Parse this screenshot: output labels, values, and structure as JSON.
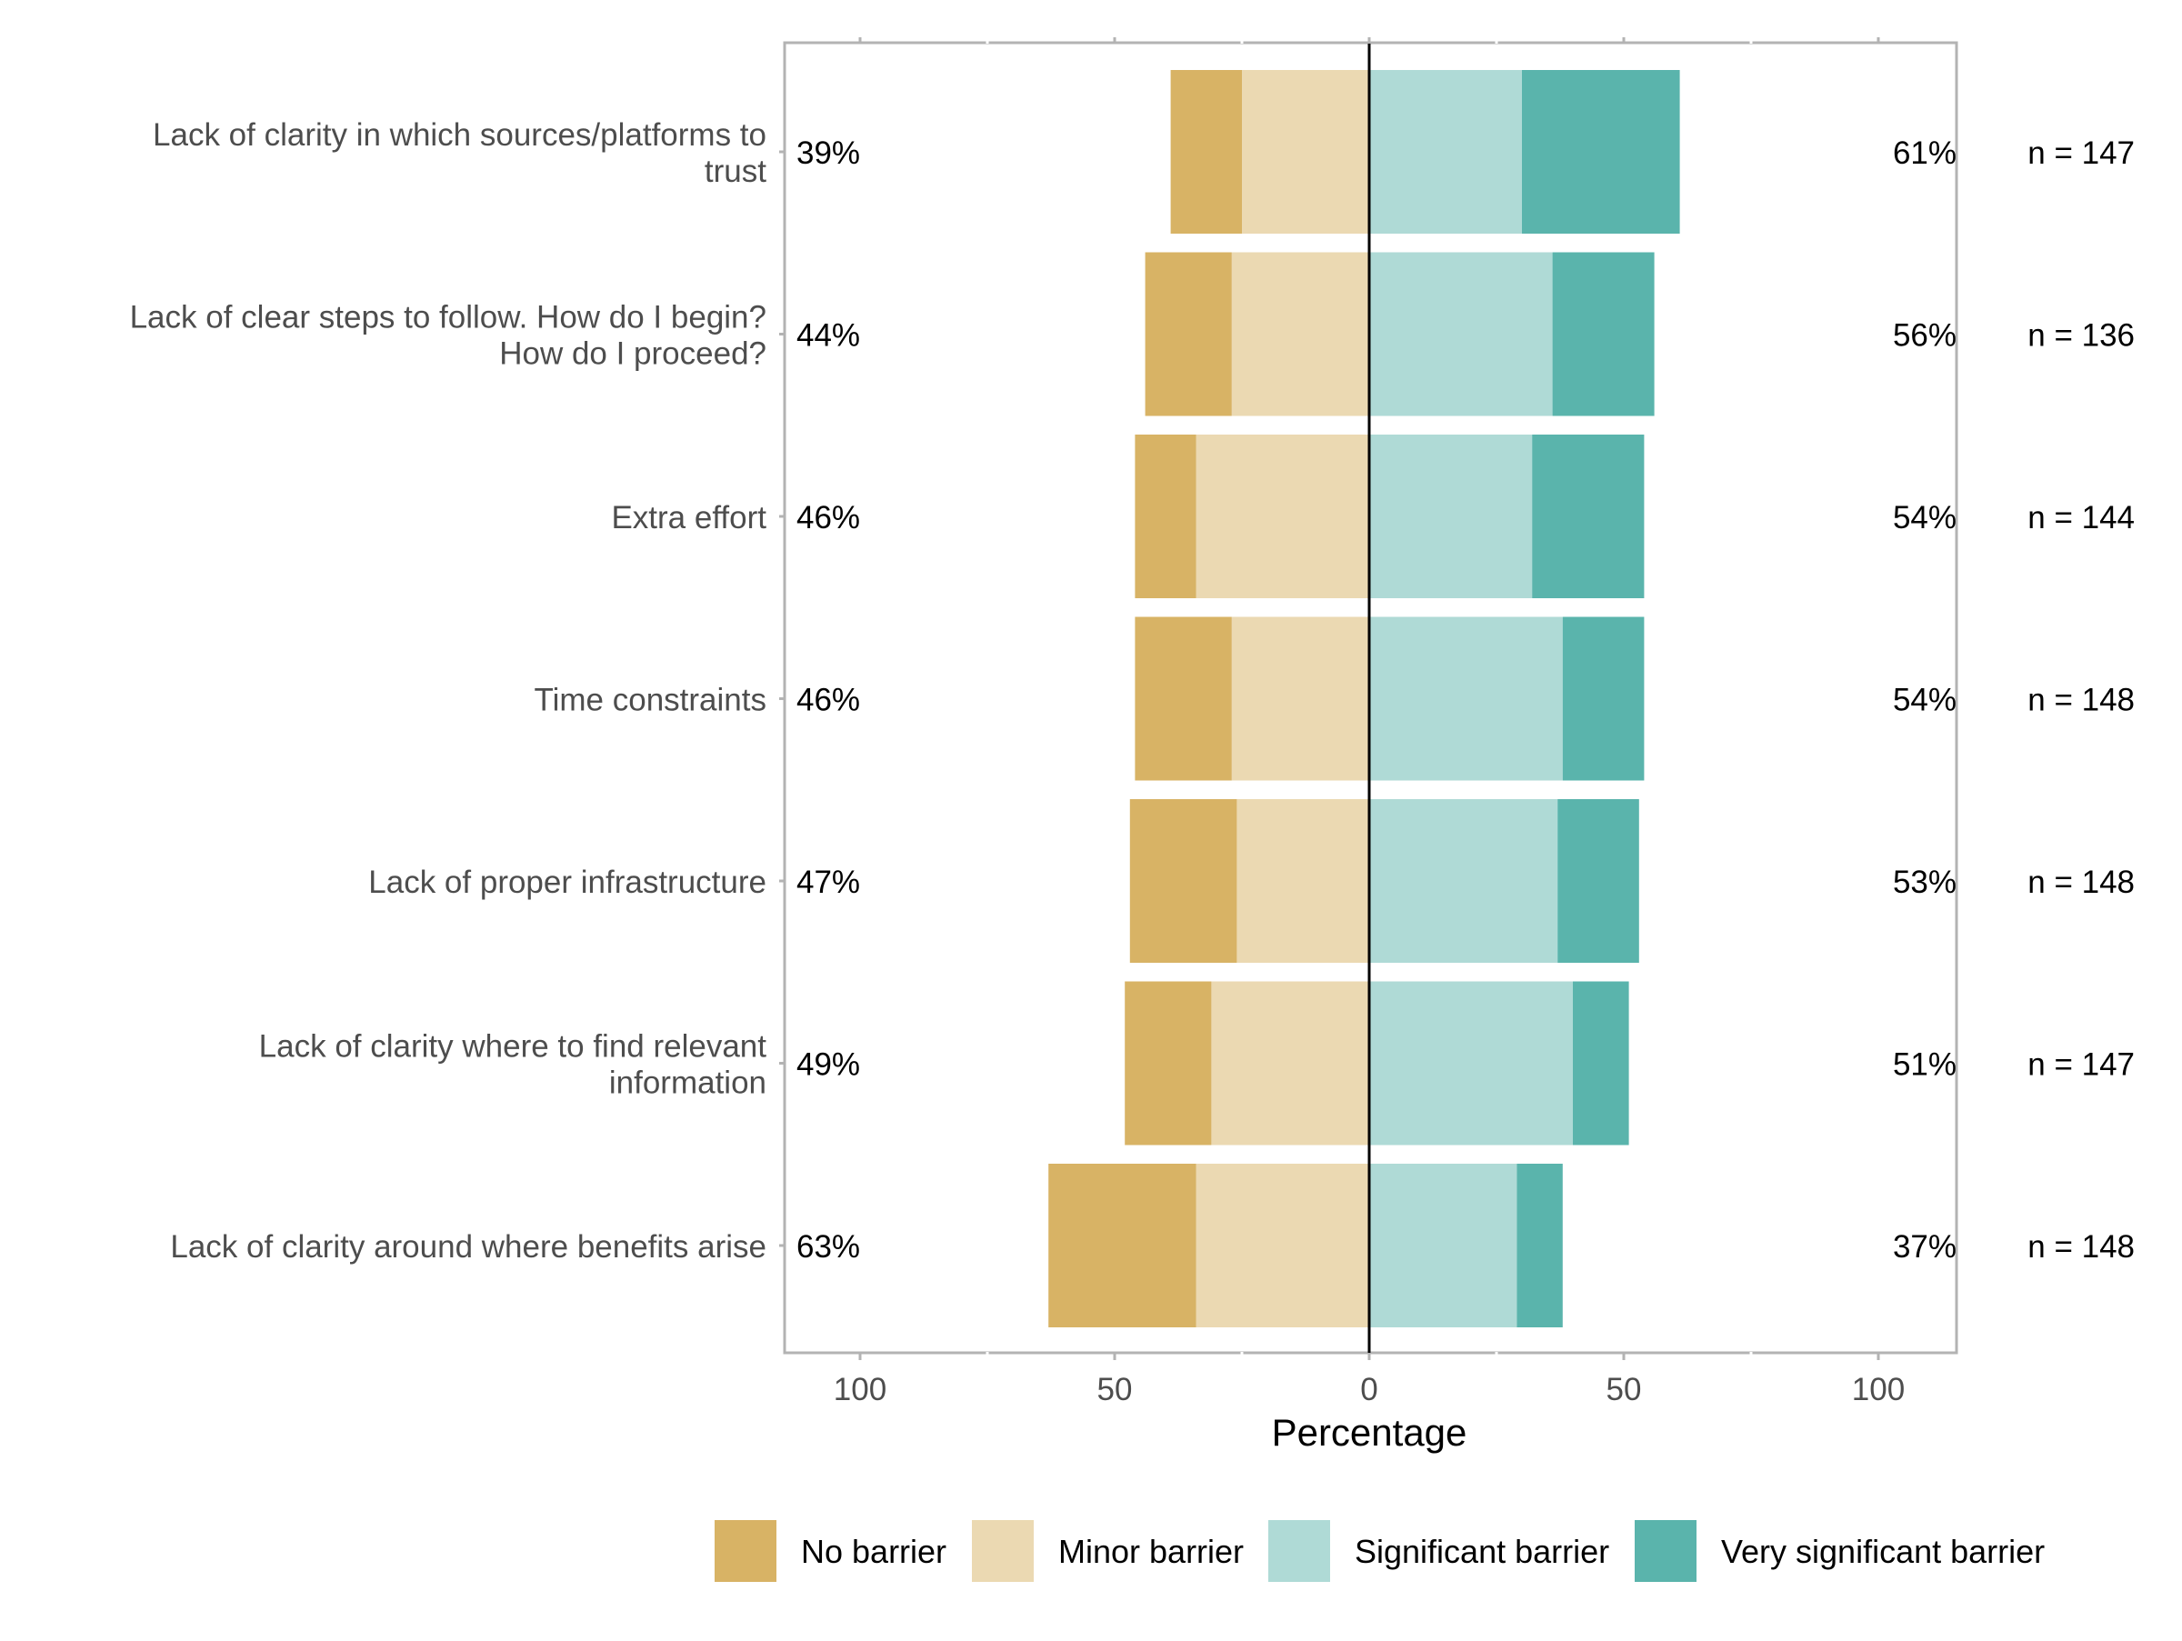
{
  "chart_data": {
    "type": "bar",
    "subtype": "diverging-stacked",
    "xlabel": "Percentage",
    "xlim": [
      -100,
      100
    ],
    "x_ticks": [
      -100,
      -50,
      0,
      50,
      100
    ],
    "x_tick_labels": [
      "100",
      "50",
      "0",
      "50",
      "100"
    ],
    "categories": [
      "Lack of clarity in which sources/platforms to trust",
      "Lack of clear steps to follow. How do I begin? How do I proceed?",
      "Extra effort",
      "Time constraints",
      "Lack of proper infrastructure",
      "Lack of clarity where to find relevant information",
      "Lack of clarity around where benefits arise"
    ],
    "category_label_lines": [
      [
        "Lack of clarity in which sources/platforms to",
        "trust"
      ],
      [
        "Lack of clear steps to follow. How do I begin?",
        "How do I proceed?"
      ],
      [
        "Extra effort"
      ],
      [
        "Time constraints"
      ],
      [
        "Lack of proper infrastructure"
      ],
      [
        "Lack of clarity where to find relevant",
        "information"
      ],
      [
        "Lack of clarity around where benefits arise"
      ]
    ],
    "series": [
      {
        "name": "No barrier",
        "color": "#D8B365",
        "side": "left",
        "values": [
          14,
          17,
          12,
          19,
          21,
          17,
          29
        ]
      },
      {
        "name": "Minor barrier",
        "color": "#EBD9B2",
        "side": "left",
        "values": [
          25,
          27,
          34,
          27,
          26,
          31,
          34
        ]
      },
      {
        "name": "Significant barrier",
        "color": "#AFDAD6",
        "side": "right",
        "values": [
          30,
          36,
          32,
          38,
          37,
          40,
          29
        ]
      },
      {
        "name": "Very significant barrier",
        "color": "#5AB4AC",
        "side": "right",
        "values": [
          31,
          20,
          22,
          16,
          16,
          11,
          9
        ]
      }
    ],
    "left_totals": [
      "39%",
      "44%",
      "46%",
      "46%",
      "47%",
      "49%",
      "63%"
    ],
    "right_totals": [
      "61%",
      "56%",
      "54%",
      "54%",
      "53%",
      "51%",
      "37%"
    ],
    "n_labels": [
      "n = 147",
      "n = 136",
      "n = 144",
      "n = 148",
      "n = 148",
      "n = 147",
      "n = 148"
    ],
    "legend_position": "bottom",
    "grid": false,
    "zero_line": true
  }
}
